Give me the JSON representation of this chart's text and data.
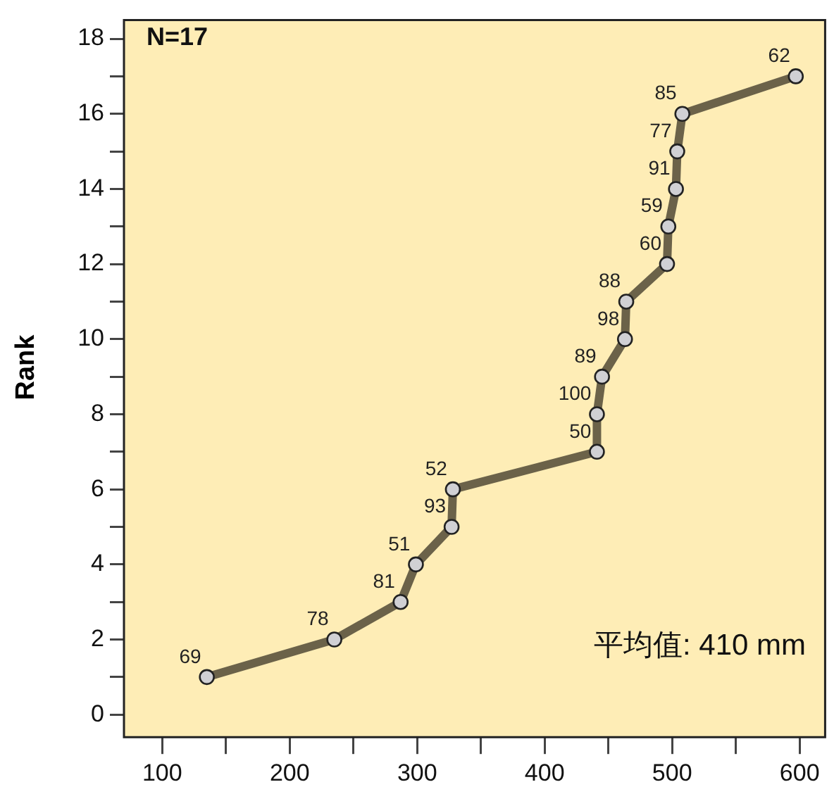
{
  "chart_data": {
    "type": "line",
    "ylabel": "Rank",
    "x": [
      135,
      235,
      287,
      299,
      327,
      328,
      441,
      441,
      445,
      463,
      464,
      496,
      497,
      503,
      504,
      508,
      597
    ],
    "series": [
      {
        "color": "#6b6249",
        "values": [
          1,
          2,
          3,
          4,
          5,
          6,
          7,
          8,
          9,
          10,
          11,
          12,
          13,
          14,
          15,
          16,
          17
        ]
      }
    ],
    "xlim": [
      70,
      620
    ],
    "xticks": [
      100,
      {
        "value": 150,
        "label": null
      },
      200,
      {
        "value": 250,
        "label": null
      },
      300,
      {
        "value": 350,
        "label": null
      },
      400,
      {
        "value": 450,
        "label": null
      },
      500,
      {
        "value": 550,
        "label": null
      },
      600
    ],
    "ylim": [
      -0.6,
      18.5
    ],
    "yticks": [
      0,
      {
        "value": 1,
        "label": null
      },
      2,
      {
        "value": 3,
        "label": null
      },
      4,
      {
        "value": 5,
        "label": null
      },
      6,
      {
        "value": 7,
        "label": null
      },
      8,
      {
        "value": 9,
        "label": null
      },
      10,
      {
        "value": 11,
        "label": null
      },
      12,
      {
        "value": 13,
        "label": null
      },
      14,
      {
        "value": 15,
        "label": null
      },
      16,
      {
        "value": 17,
        "label": null
      },
      18
    ],
    "grid": false,
    "legend": false,
    "marker": "circle",
    "line_style": "solid",
    "annotations": [
      "N=17",
      "平均值: 410 mm",
      {
        "text": "69",
        "x": 135,
        "y": 1
      },
      {
        "text": "78",
        "x": 235,
        "y": 2
      },
      {
        "text": "81",
        "x": 287,
        "y": 3
      },
      {
        "text": "51",
        "x": 299,
        "y": 4
      },
      {
        "text": "93",
        "x": 327,
        "y": 5
      },
      {
        "text": "52",
        "x": 328,
        "y": 6
      },
      {
        "text": "50",
        "x": 441,
        "y": 7
      },
      {
        "text": "100",
        "x": 441,
        "y": 8
      },
      {
        "text": "89",
        "x": 445,
        "y": 9
      },
      {
        "text": "98",
        "x": 463,
        "y": 10
      },
      {
        "text": "88",
        "x": 464,
        "y": 11
      },
      {
        "text": "60",
        "x": 496,
        "y": 12
      },
      {
        "text": "59",
        "x": 497,
        "y": 13
      },
      {
        "text": "91",
        "x": 503,
        "y": 14
      },
      {
        "text": "77",
        "x": 504,
        "y": 15
      },
      {
        "text": "85",
        "x": 508,
        "y": 16
      },
      {
        "text": "62",
        "x": 597,
        "y": 17
      }
    ]
  }
}
